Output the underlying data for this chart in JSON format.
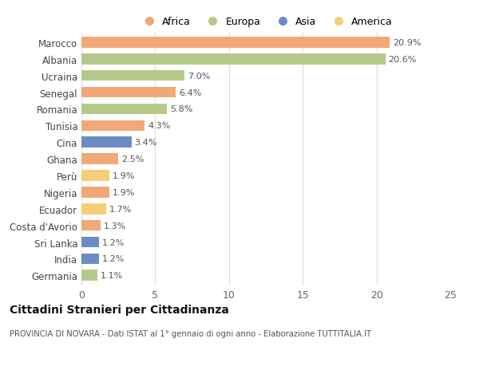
{
  "countries": [
    "Marocco",
    "Albania",
    "Ucraina",
    "Senegal",
    "Romania",
    "Tunisia",
    "Cina",
    "Ghana",
    "Perù",
    "Nigeria",
    "Ecuador",
    "Costa d'Avorio",
    "Sri Lanka",
    "India",
    "Germania"
  ],
  "values": [
    20.9,
    20.6,
    7.0,
    6.4,
    5.8,
    4.3,
    3.4,
    2.5,
    1.9,
    1.9,
    1.7,
    1.3,
    1.2,
    1.2,
    1.1
  ],
  "continents": [
    "Africa",
    "Europa",
    "Europa",
    "Africa",
    "Europa",
    "Africa",
    "Asia",
    "Africa",
    "America",
    "Africa",
    "America",
    "Africa",
    "Asia",
    "Asia",
    "Europa"
  ],
  "colors": {
    "Africa": "#F0A878",
    "Europa": "#B5C98A",
    "Asia": "#6B8CC4",
    "America": "#F5CE78"
  },
  "legend_order": [
    "Africa",
    "Europa",
    "Asia",
    "America"
  ],
  "xlim": [
    0,
    25
  ],
  "xticks": [
    0,
    5,
    10,
    15,
    20,
    25
  ],
  "title": "Cittadini Stranieri per Cittadinanza",
  "subtitle": "PROVINCIA DI NOVARA - Dati ISTAT al 1° gennaio di ogni anno - Elaborazione TUTTITALIA.IT",
  "bg_color": "#ffffff",
  "grid_color": "#dddddd",
  "bar_height": 0.65
}
